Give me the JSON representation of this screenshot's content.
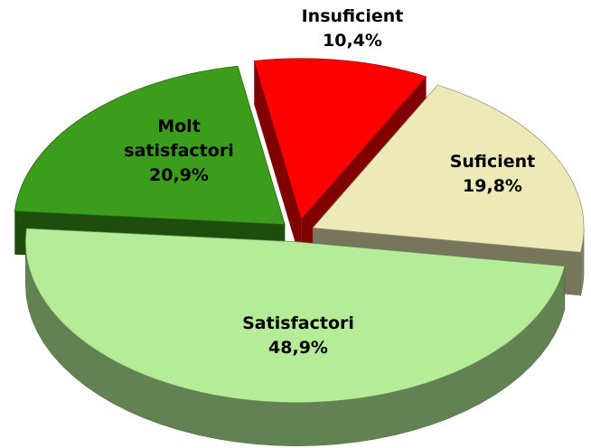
{
  "chart_data": {
    "type": "pie",
    "categories": [
      "Insuficient",
      "Suficient",
      "Satisfactori",
      "Molt satisfactori"
    ],
    "values": [
      10.4,
      19.8,
      48.9,
      20.9
    ],
    "value_labels": [
      "10,4%",
      "19,8%",
      "48,9%",
      "20,9%"
    ],
    "colors": [
      "#ff0000",
      "#eeeab8",
      "#b4ec98",
      "#3c9c1c"
    ]
  }
}
